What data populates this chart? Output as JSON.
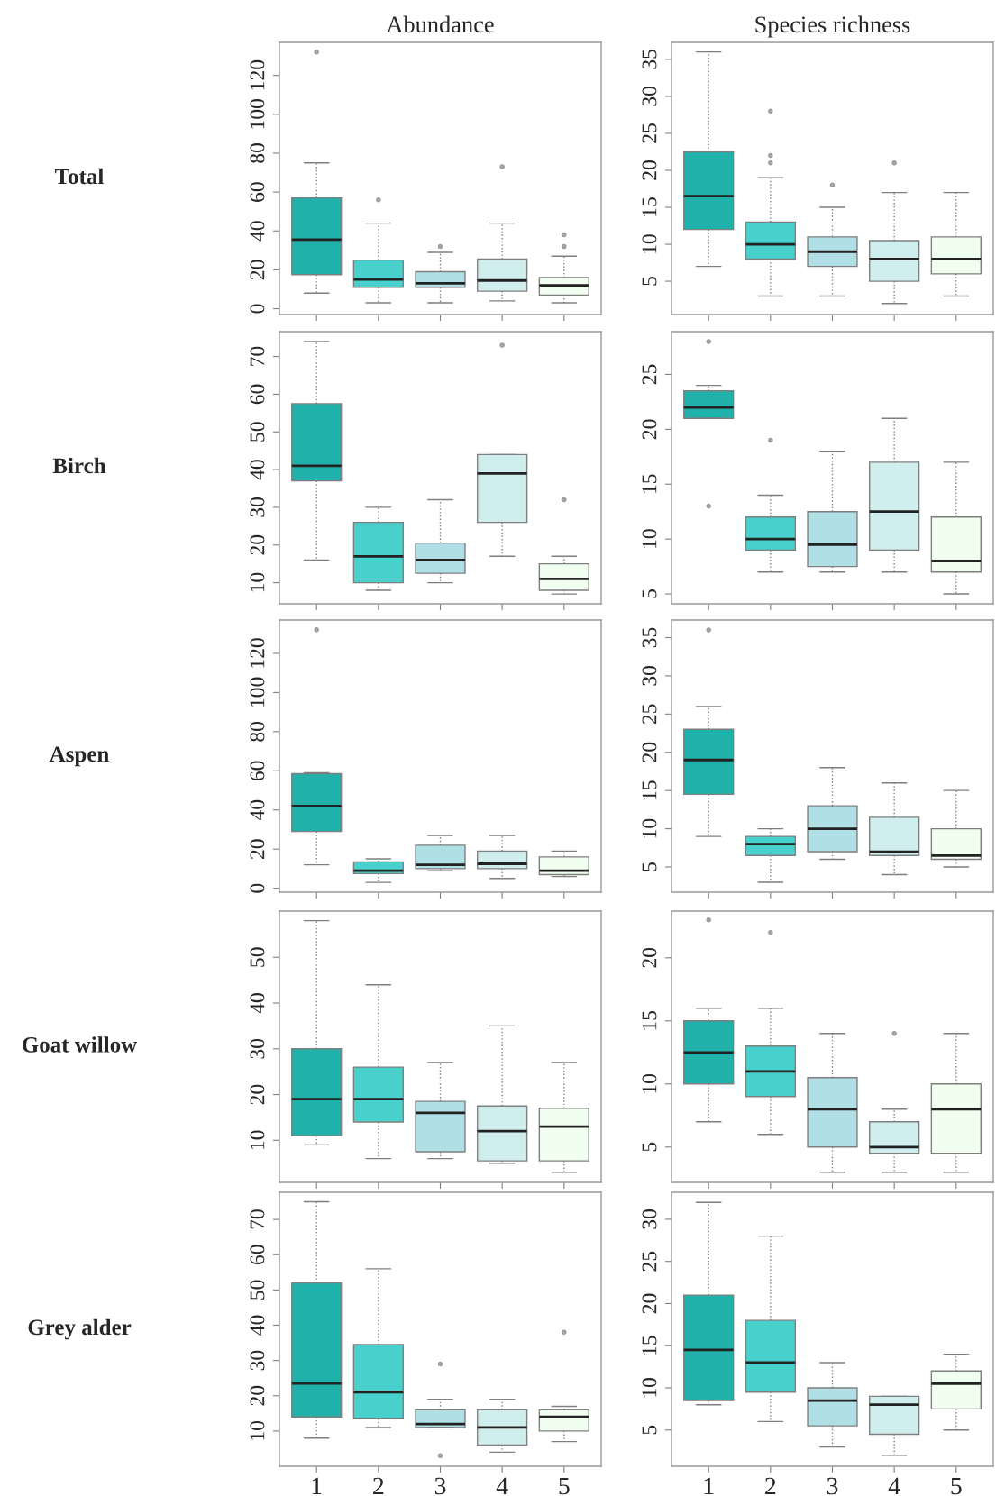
{
  "chart_data": [
    {
      "type": "box",
      "title": "Abundance",
      "ylabel": "Total",
      "categories": [
        "1",
        "2",
        "3",
        "4",
        "5"
      ],
      "colors": [
        "#20b2aa",
        "#48d1cc",
        "#b0e0e6",
        "#d1eeee",
        "#f0fff0"
      ],
      "ylim": [
        -3,
        137
      ],
      "yticks": [
        0,
        20,
        40,
        60,
        80,
        100,
        120
      ],
      "tick_labels": "y",
      "boxes": [
        {
          "low": 8,
          "q1": 17.5,
          "median": 35.5,
          "q3": 57,
          "high": 75,
          "outliers": [
            132
          ]
        },
        {
          "low": 3,
          "q1": 11,
          "median": 15,
          "q3": 25,
          "high": 44,
          "outliers": [
            56
          ]
        },
        {
          "low": 3,
          "q1": 11,
          "median": 13,
          "q3": 19,
          "high": 29,
          "outliers": [
            32
          ]
        },
        {
          "low": 4,
          "q1": 9,
          "median": 14.5,
          "q3": 25.5,
          "high": 44,
          "outliers": [
            73
          ]
        },
        {
          "low": 3,
          "q1": 7,
          "median": 12,
          "q3": 16,
          "high": 27,
          "outliers": [
            32,
            38
          ]
        }
      ]
    },
    {
      "type": "box",
      "title": "Species richness",
      "categories": [
        "1",
        "2",
        "3",
        "4",
        "5"
      ],
      "colors": [
        "#20b2aa",
        "#48d1cc",
        "#b0e0e6",
        "#d1eeee",
        "#f0fff0"
      ],
      "ylim": [
        0.5,
        37.3
      ],
      "yticks": [
        5,
        10,
        15,
        20,
        25,
        30,
        35
      ],
      "tick_labels": "y",
      "boxes": [
        {
          "low": 7,
          "q1": 12,
          "median": 16.5,
          "q3": 22.5,
          "high": 36
        },
        {
          "low": 3,
          "q1": 8,
          "median": 10,
          "q3": 13,
          "high": 19,
          "outliers": [
            21,
            22,
            28
          ]
        },
        {
          "low": 3,
          "q1": 7,
          "median": 9,
          "q3": 11,
          "high": 15,
          "outliers": [
            18
          ]
        },
        {
          "low": 2,
          "q1": 5,
          "median": 8,
          "q3": 10.5,
          "high": 17,
          "outliers": [
            21
          ]
        },
        {
          "low": 3,
          "q1": 6,
          "median": 8,
          "q3": 11,
          "high": 17
        }
      ]
    },
    {
      "type": "box",
      "ylabel": "Birch",
      "categories": [
        "1",
        "2",
        "3",
        "4",
        "5"
      ],
      "colors": [
        "#20b2aa",
        "#48d1cc",
        "#b0e0e6",
        "#d1eeee",
        "#f0fff0"
      ],
      "ylim": [
        4.4,
        76.6
      ],
      "yticks": [
        10,
        20,
        30,
        40,
        50,
        60,
        70
      ],
      "tick_labels": "y",
      "boxes": [
        {
          "low": 16,
          "q1": 37,
          "median": 41,
          "q3": 57.5,
          "high": 74
        },
        {
          "low": 8,
          "q1": 10,
          "median": 17,
          "q3": 26,
          "high": 30
        },
        {
          "low": 10,
          "q1": 12.5,
          "median": 16,
          "q3": 20.5,
          "high": 32
        },
        {
          "low": 17,
          "q1": 26,
          "median": 39,
          "q3": 44,
          "high": 44,
          "outliers": [
            73
          ]
        },
        {
          "low": 7,
          "q1": 8,
          "median": 11,
          "q3": 15,
          "high": 17,
          "outliers": [
            32
          ]
        }
      ]
    },
    {
      "type": "box",
      "categories": [
        "1",
        "2",
        "3",
        "4",
        "5"
      ],
      "colors": [
        "#20b2aa",
        "#48d1cc",
        "#b0e0e6",
        "#d1eeee",
        "#f0fff0"
      ],
      "ylim": [
        4.1,
        28.9
      ],
      "yticks": [
        5,
        10,
        15,
        20,
        25
      ],
      "tick_labels": "y",
      "boxes": [
        {
          "low": 21,
          "q1": 21,
          "median": 22,
          "q3": 23.5,
          "high": 24,
          "outliers": [
            28,
            13
          ]
        },
        {
          "low": 7,
          "q1": 9,
          "median": 10,
          "q3": 12,
          "high": 14,
          "outliers": [
            19
          ]
        },
        {
          "low": 7,
          "q1": 7.5,
          "median": 9.5,
          "q3": 12.5,
          "high": 18
        },
        {
          "low": 7,
          "q1": 9,
          "median": 12.5,
          "q3": 17,
          "high": 21
        },
        {
          "low": 5,
          "q1": 7,
          "median": 8,
          "q3": 12,
          "high": 17
        }
      ]
    },
    {
      "type": "box",
      "ylabel": "Aspen",
      "categories": [
        "1",
        "2",
        "3",
        "4",
        "5"
      ],
      "colors": [
        "#20b2aa",
        "#48d1cc",
        "#b0e0e6",
        "#d1eeee",
        "#f0fff0"
      ],
      "ylim": [
        -2,
        137
      ],
      "yticks": [
        0,
        20,
        40,
        60,
        80,
        100,
        120
      ],
      "tick_labels": "y",
      "boxes": [
        {
          "low": 12,
          "q1": 29,
          "median": 42,
          "q3": 58.5,
          "high": 59,
          "outliers": [
            132
          ]
        },
        {
          "low": 3,
          "q1": 7.5,
          "median": 9,
          "q3": 13.5,
          "high": 15
        },
        {
          "low": 9,
          "q1": 10,
          "median": 12,
          "q3": 22,
          "high": 27
        },
        {
          "low": 5,
          "q1": 10,
          "median": 12.5,
          "q3": 19,
          "high": 27
        },
        {
          "low": 6,
          "q1": 7,
          "median": 9,
          "q3": 16,
          "high": 19
        }
      ]
    },
    {
      "type": "box",
      "categories": [
        "1",
        "2",
        "3",
        "4",
        "5"
      ],
      "colors": [
        "#20b2aa",
        "#48d1cc",
        "#b0e0e6",
        "#d1eeee",
        "#f0fff0"
      ],
      "ylim": [
        1.7,
        37.3
      ],
      "yticks": [
        5,
        10,
        15,
        20,
        25,
        30,
        35
      ],
      "tick_labels": "y",
      "boxes": [
        {
          "low": 9,
          "q1": 14.5,
          "median": 19,
          "q3": 23,
          "high": 26,
          "outliers": [
            36
          ]
        },
        {
          "low": 3,
          "q1": 6.5,
          "median": 8,
          "q3": 9,
          "high": 10
        },
        {
          "low": 6,
          "q1": 7,
          "median": 10,
          "q3": 13,
          "high": 18
        },
        {
          "low": 4,
          "q1": 6.5,
          "median": 7,
          "q3": 11.5,
          "high": 16
        },
        {
          "low": 5,
          "q1": 6,
          "median": 6.5,
          "q3": 10,
          "high": 15
        }
      ]
    },
    {
      "type": "box",
      "ylabel": "Goat willow",
      "categories": [
        "1",
        "2",
        "3",
        "4",
        "5"
      ],
      "colors": [
        "#20b2aa",
        "#48d1cc",
        "#b0e0e6",
        "#d1eeee",
        "#f0fff0"
      ],
      "ylim": [
        0.8,
        60.1
      ],
      "yticks": [
        10,
        20,
        30,
        40,
        50
      ],
      "tick_labels": "y",
      "boxes": [
        {
          "low": 9,
          "q1": 11,
          "median": 19,
          "q3": 30,
          "high": 58
        },
        {
          "low": 6,
          "q1": 14,
          "median": 19,
          "q3": 26,
          "high": 44
        },
        {
          "low": 6,
          "q1": 7.5,
          "median": 16,
          "q3": 18.5,
          "high": 27
        },
        {
          "low": 5,
          "q1": 5.5,
          "median": 12,
          "q3": 17.5,
          "high": 35
        },
        {
          "low": 3,
          "q1": 5.5,
          "median": 13,
          "q3": 17,
          "high": 27
        }
      ]
    },
    {
      "type": "box",
      "categories": [
        "1",
        "2",
        "3",
        "4",
        "5"
      ],
      "colors": [
        "#20b2aa",
        "#48d1cc",
        "#b0e0e6",
        "#d1eeee",
        "#f0fff0"
      ],
      "ylim": [
        2.2,
        23.7
      ],
      "yticks": [
        5,
        10,
        15,
        20
      ],
      "tick_labels": "y",
      "boxes": [
        {
          "low": 7,
          "q1": 10,
          "median": 12.5,
          "q3": 15,
          "high": 16,
          "outliers": [
            23
          ]
        },
        {
          "low": 6,
          "q1": 9,
          "median": 11,
          "q3": 13,
          "high": 16,
          "outliers": [
            22
          ]
        },
        {
          "low": 3,
          "q1": 5,
          "median": 8,
          "q3": 10.5,
          "high": 14
        },
        {
          "low": 3,
          "q1": 4.5,
          "median": 5,
          "q3": 7,
          "high": 8,
          "outliers": [
            14
          ]
        },
        {
          "low": 3,
          "q1": 4.5,
          "median": 8,
          "q3": 10,
          "high": 14
        }
      ]
    },
    {
      "type": "box",
      "ylabel": "Grey alder",
      "categories": [
        "1",
        "2",
        "3",
        "4",
        "5"
      ],
      "colors": [
        "#20b2aa",
        "#48d1cc",
        "#b0e0e6",
        "#d1eeee",
        "#f0fff0"
      ],
      "ylim": [
        0,
        77.7
      ],
      "yticks": [
        10,
        20,
        30,
        40,
        50,
        60,
        70
      ],
      "boxes": [
        {
          "low": 8,
          "q1": 14,
          "median": 23.5,
          "q3": 52,
          "high": 75
        },
        {
          "low": 11,
          "q1": 13.5,
          "median": 21,
          "q3": 34.5,
          "high": 56
        },
        {
          "low": 11,
          "q1": 11,
          "median": 12,
          "q3": 16,
          "high": 19,
          "outliers": [
            29,
            3
          ]
        },
        {
          "low": 4,
          "q1": 6,
          "median": 11,
          "q3": 16,
          "high": 19
        },
        {
          "low": 7,
          "q1": 10,
          "median": 14,
          "q3": 16,
          "high": 17,
          "outliers": [
            38
          ]
        }
      ]
    },
    {
      "type": "box",
      "categories": [
        "1",
        "2",
        "3",
        "4",
        "5"
      ],
      "colors": [
        "#20b2aa",
        "#48d1cc",
        "#b0e0e6",
        "#d1eeee",
        "#f0fff0"
      ],
      "ylim": [
        0.7,
        33.2
      ],
      "yticks": [
        5,
        10,
        15,
        20,
        25,
        30
      ],
      "boxes": [
        {
          "low": 8,
          "q1": 8.5,
          "median": 14.5,
          "q3": 21,
          "high": 32
        },
        {
          "low": 6,
          "q1": 9.5,
          "median": 13,
          "q3": 18,
          "high": 28
        },
        {
          "low": 3,
          "q1": 5.5,
          "median": 8.5,
          "q3": 10,
          "high": 13
        },
        {
          "low": 2,
          "q1": 4.5,
          "median": 8,
          "q3": 9,
          "high": 9
        },
        {
          "low": 5,
          "q1": 7.5,
          "median": 10.5,
          "q3": 12,
          "high": 14
        }
      ]
    }
  ]
}
